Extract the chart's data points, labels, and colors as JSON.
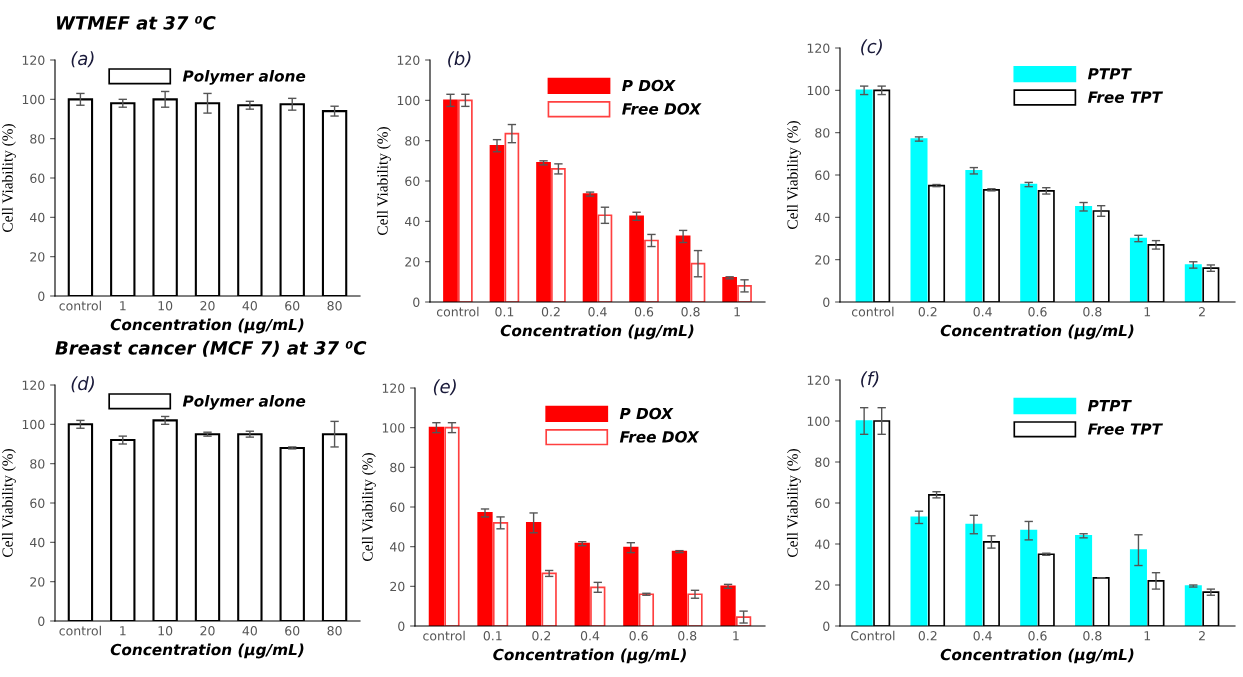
{
  "chart_data": [
    {
      "type": "bar",
      "title": "WTMEF at 37 ⁰C",
      "annotations": [
        "(a)"
      ],
      "xlabel": "Concentration (μg/mL)",
      "ylabel": "Cell Viability (%)",
      "categories": [
        "control",
        "1",
        "10",
        "20",
        "40",
        "60",
        "80"
      ],
      "ylim": [
        0,
        120
      ],
      "yticks": [
        0,
        20,
        40,
        60,
        80,
        100,
        120
      ],
      "legend": "top",
      "grid": false,
      "series": [
        {
          "name": "Polymer alone",
          "color": "#000000",
          "values": [
            100,
            98,
            100,
            98,
            97,
            97.5,
            94
          ],
          "errors": [
            3,
            2,
            4,
            5,
            2,
            3,
            2.5
          ]
        }
      ]
    },
    {
      "type": "bar",
      "annotations": [
        "(b)"
      ],
      "xlabel": "Concentration (μg/mL)",
      "ylabel": "Cell Viability (%)",
      "categories": [
        "control",
        "0.1",
        "0.2",
        "0.4",
        "0.6",
        "0.8",
        "1"
      ],
      "ylim": [
        0,
        120
      ],
      "yticks": [
        0,
        20,
        40,
        60,
        80,
        100,
        120
      ],
      "legend": "top right",
      "grid": false,
      "series": [
        {
          "name": "P DOX",
          "color": "#ff0000",
          "values": [
            100,
            77.5,
            69,
            53.5,
            42.5,
            32.5,
            12
          ],
          "errors": [
            3,
            3,
            1,
            1,
            2,
            3,
            0.5
          ]
        },
        {
          "name": "Free DOX",
          "color": "#ff4040",
          "values": [
            100,
            83.5,
            66,
            43,
            30.5,
            19,
            8
          ],
          "errors": [
            3,
            4.5,
            2.5,
            4,
            3,
            6.5,
            3
          ]
        }
      ]
    },
    {
      "type": "bar",
      "annotations": [
        "(c)"
      ],
      "xlabel": "Concentration (μg/mL)",
      "ylabel": "Cell Viability (%)",
      "categories": [
        "control",
        "0.2",
        "0.4",
        "0.6",
        "0.8",
        "1",
        "2"
      ],
      "ylim": [
        0,
        120
      ],
      "yticks": [
        0,
        20,
        40,
        60,
        80,
        100,
        120
      ],
      "legend": "top right",
      "grid": false,
      "series": [
        {
          "name": "PTPT",
          "color": "#00ffff",
          "values": [
            100,
            77,
            62,
            55.5,
            45,
            30,
            17.5
          ],
          "errors": [
            2,
            1,
            1.5,
            1,
            2,
            1.5,
            1.5
          ]
        },
        {
          "name": "Free TPT",
          "color": "#000000",
          "values": [
            100,
            55,
            53,
            52.5,
            43,
            27,
            16
          ],
          "errors": [
            2,
            0.5,
            0.5,
            1.5,
            2.5,
            2,
            1.5
          ]
        }
      ]
    },
    {
      "type": "bar",
      "title": "Breast cancer (MCF 7) at 37 ⁰C",
      "annotations": [
        "(d)"
      ],
      "xlabel": "Concentration (μg/mL)",
      "ylabel": "Cell Viability (%)",
      "categories": [
        "control",
        "1",
        "10",
        "20",
        "40",
        "60",
        "80"
      ],
      "ylim": [
        0,
        120
      ],
      "yticks": [
        0,
        20,
        40,
        60,
        80,
        100,
        120
      ],
      "legend": "top",
      "grid": false,
      "series": [
        {
          "name": "Polymer alone",
          "color": "#000000",
          "values": [
            100,
            92,
            102,
            95,
            95,
            88,
            95
          ],
          "errors": [
            2,
            2,
            2,
            1,
            1.5,
            0.5,
            6.5
          ]
        }
      ]
    },
    {
      "type": "bar",
      "annotations": [
        "(e)"
      ],
      "xlabel": "Concentration (μg/mL)",
      "ylabel": "Cell Viability (%)",
      "categories": [
        "control",
        "0.1",
        "0.2",
        "0.4",
        "0.6",
        "0.8",
        "1"
      ],
      "ylim": [
        0,
        120
      ],
      "yticks": [
        0,
        20,
        40,
        60,
        80,
        100,
        120
      ],
      "legend": "top right",
      "grid": false,
      "series": [
        {
          "name": "P DOX",
          "color": "#ff0000",
          "values": [
            100,
            57,
            52,
            41.5,
            39.5,
            37.5,
            20
          ],
          "errors": [
            2.5,
            2,
            5,
            1,
            2.5,
            0.5,
            1
          ]
        },
        {
          "name": "Free DOX",
          "color": "#ff4040",
          "values": [
            100,
            52,
            26.5,
            19.5,
            16,
            16,
            4.5
          ],
          "errors": [
            2.5,
            3,
            1.5,
            2.5,
            0.5,
            2,
            3
          ]
        }
      ]
    },
    {
      "type": "bar",
      "annotations": [
        "(f)"
      ],
      "xlabel": "Concentration (μg/mL)",
      "ylabel": "Cell Viability (%)",
      "categories": [
        "Control",
        "0.2",
        "0.4",
        "0.6",
        "0.8",
        "1",
        "2"
      ],
      "ylim": [
        0,
        120
      ],
      "yticks": [
        0,
        20,
        40,
        60,
        80,
        100,
        120
      ],
      "legend": "top right",
      "grid": false,
      "series": [
        {
          "name": "PTPT",
          "color": "#00ffff",
          "values": [
            100,
            53,
            49.5,
            46.5,
            44,
            37,
            19.5
          ],
          "errors": [
            6.5,
            3,
            4.5,
            4.5,
            1,
            7.5,
            0.5
          ]
        },
        {
          "name": "Free TPT",
          "color": "#000000",
          "values": [
            100,
            64,
            41,
            35,
            23.5,
            22,
            16.5
          ],
          "errors": [
            6.5,
            1.5,
            3,
            0.5,
            null,
            4,
            1.5
          ]
        }
      ]
    }
  ]
}
